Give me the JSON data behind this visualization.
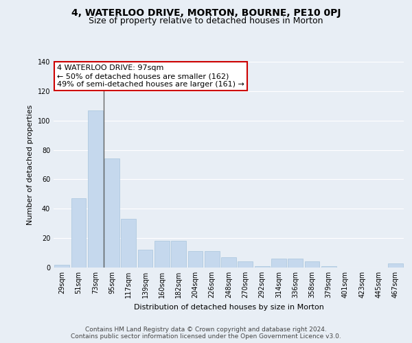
{
  "title": "4, WATERLOO DRIVE, MORTON, BOURNE, PE10 0PJ",
  "subtitle": "Size of property relative to detached houses in Morton",
  "xlabel": "Distribution of detached houses by size in Morton",
  "ylabel": "Number of detached properties",
  "categories": [
    "29sqm",
    "51sqm",
    "73sqm",
    "95sqm",
    "117sqm",
    "139sqm",
    "160sqm",
    "182sqm",
    "204sqm",
    "226sqm",
    "248sqm",
    "270sqm",
    "292sqm",
    "314sqm",
    "336sqm",
    "358sqm",
    "379sqm",
    "401sqm",
    "423sqm",
    "445sqm",
    "467sqm"
  ],
  "values": [
    2,
    47,
    107,
    74,
    33,
    12,
    18,
    18,
    11,
    11,
    7,
    4,
    1,
    6,
    6,
    4,
    1,
    0,
    0,
    0,
    3
  ],
  "bar_color": "#c5d8ed",
  "bar_edge_color": "#a8c4dc",
  "highlight_line_color": "#666666",
  "annotation_text": "4 WATERLOO DRIVE: 97sqm\n← 50% of detached houses are smaller (162)\n49% of semi-detached houses are larger (161) →",
  "annotation_box_color": "#ffffff",
  "annotation_box_edge_color": "#cc0000",
  "ylim": [
    0,
    140
  ],
  "yticks": [
    0,
    20,
    40,
    60,
    80,
    100,
    120,
    140
  ],
  "background_color": "#e8eef5",
  "grid_color": "#ffffff",
  "footer_line1": "Contains HM Land Registry data © Crown copyright and database right 2024.",
  "footer_line2": "Contains public sector information licensed under the Open Government Licence v3.0.",
  "title_fontsize": 10,
  "subtitle_fontsize": 9,
  "axis_label_fontsize": 8,
  "tick_fontsize": 7,
  "annotation_fontsize": 8,
  "footer_fontsize": 6.5
}
